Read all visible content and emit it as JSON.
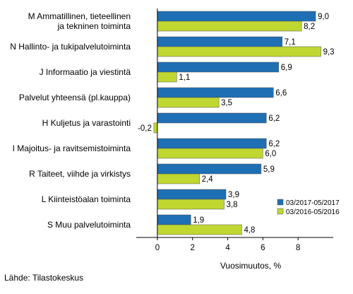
{
  "chart_data": {
    "type": "bar",
    "orientation": "horizontal",
    "categories": [
      [
        "M Ammatillinen, tieteellinen",
        "ja tekninen toiminta"
      ],
      [
        "N Hallinto- ja tukipalvelutoiminta"
      ],
      [
        "J Informaatio ja viestintä"
      ],
      [
        "Palvelut yhteensä (pl.kauppa)"
      ],
      [
        "H Kuljetus ja varastointi"
      ],
      [
        "I Majoitus- ja ravitsemistoiminta"
      ],
      [
        "R Taiteet, viihde ja virkistys"
      ],
      [
        "L Kiinteistöalan toiminta"
      ],
      [
        "S Muu palvelutoiminta"
      ]
    ],
    "series": [
      {
        "name": "03/2017-05/2017",
        "color": "#1f6fb4",
        "values": [
          9.0,
          7.1,
          6.9,
          6.6,
          6.2,
          6.2,
          5.9,
          3.9,
          1.9
        ],
        "labels": [
          "9,0",
          "7,1",
          "6,9",
          "6,6",
          "6,2",
          "6,2",
          "5,9",
          "3,9",
          "1,9"
        ]
      },
      {
        "name": "03/2016-05/2016",
        "color": "#bfd730",
        "values": [
          8.2,
          9.3,
          1.1,
          3.5,
          -0.2,
          6.0,
          2.4,
          3.8,
          4.8
        ],
        "labels": [
          "8,2",
          "9,3",
          "1,1",
          "3,5",
          "-0,2",
          "6,0",
          "2,4",
          "3,8",
          "4,8"
        ]
      }
    ],
    "xticks": [
      "0",
      "2",
      "4",
      "6",
      "8"
    ],
    "xtick_values": [
      0,
      2,
      4,
      6,
      8
    ],
    "xlim": [
      -1.2,
      10
    ],
    "xlabel": "Vuosimuutos, %",
    "ylabel": "",
    "title": "",
    "grid": false,
    "legend_position": "bottom-right"
  },
  "footer": {
    "source": "Lähde: Tilastokeskus"
  }
}
